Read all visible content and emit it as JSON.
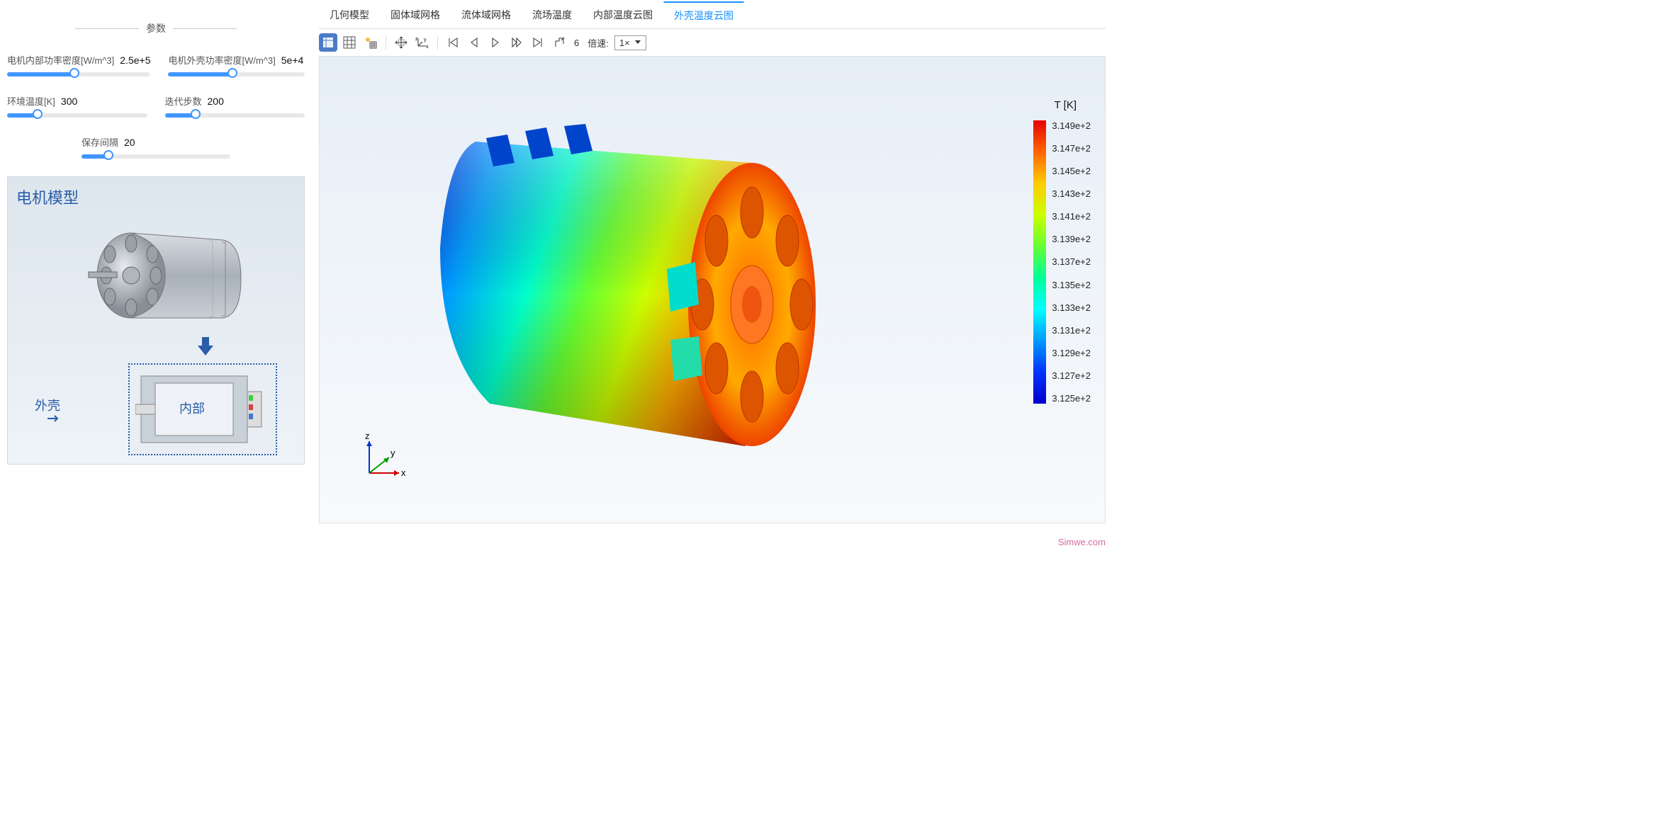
{
  "params_header": "参数",
  "sliders": {
    "inner_power": {
      "label": "电机内部功率密度[W/m^3]",
      "value": "2.5e+5",
      "fill_pct": 47
    },
    "outer_power": {
      "label": "电机外壳功率密度[W/m^3]",
      "value": "5e+4",
      "fill_pct": 47
    },
    "ambient_temp": {
      "label": "环境温度[K]",
      "value": "300",
      "fill_pct": 22
    },
    "iterations": {
      "label": "迭代步数",
      "value": "200",
      "fill_pct": 22
    },
    "save_interval": {
      "label": "保存间隔",
      "value": "20",
      "fill_pct": 18
    }
  },
  "model_preview": {
    "title": "电机模型",
    "shell_label": "外壳",
    "inner_label": "内部"
  },
  "tabs": [
    "几何模型",
    "固体域网格",
    "流体域网格",
    "流场温度",
    "内部温度云图",
    "外壳温度云图"
  ],
  "active_tab_index": 5,
  "toolbar": {
    "frame_value": "6",
    "speed_label": "倍速:",
    "speed_value": "1×"
  },
  "colorbar": {
    "title": "T [K]",
    "ticks": [
      "3.149e+2",
      "3.147e+2",
      "3.145e+2",
      "3.143e+2",
      "3.141e+2",
      "3.139e+2",
      "3.137e+2",
      "3.135e+2",
      "3.133e+2",
      "3.131e+2",
      "3.129e+2",
      "3.127e+2",
      "3.125e+2"
    ],
    "gradient_colors": [
      "#e60000",
      "#ff6600",
      "#ffcc00",
      "#ccff00",
      "#66ff33",
      "#00ff99",
      "#00ffff",
      "#0099ff",
      "#0033ff",
      "#0000cc"
    ]
  },
  "axes": {
    "x": "x",
    "y": "y",
    "z": "z"
  },
  "watermark": "Simwe.com",
  "colors": {
    "accent": "#4096ff",
    "tab_active": "#1890ff",
    "model_title": "#2a5ca8"
  }
}
